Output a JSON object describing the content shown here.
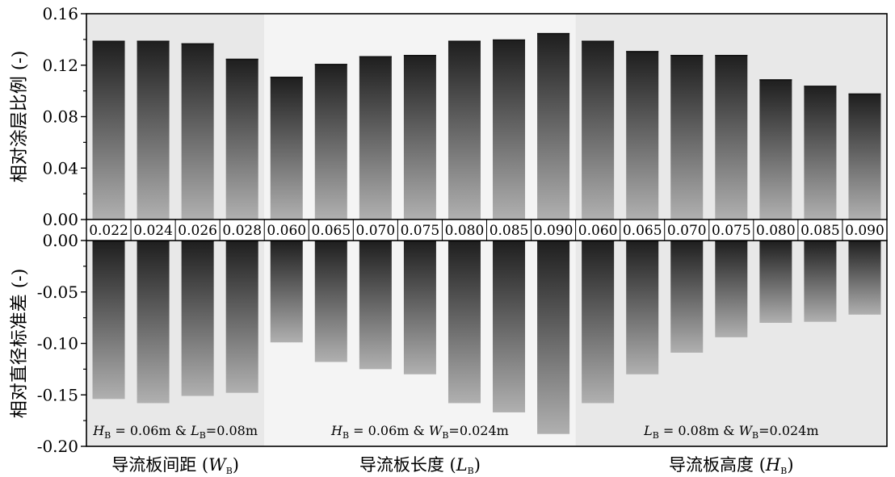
{
  "chart_data": {
    "type": "bar",
    "categories": [
      "0.022",
      "0.024",
      "0.026",
      "0.028",
      "0.060",
      "0.065",
      "0.070",
      "0.075",
      "0.080",
      "0.085",
      "0.090",
      "0.060",
      "0.065",
      "0.070",
      "0.075",
      "0.080",
      "0.085",
      "0.090"
    ],
    "groups": [
      {
        "label": "导流板间距 (",
        "label_var": "W",
        "label_sub": "B",
        "label_end": ")",
        "count": 4,
        "background": "#e8e8e8",
        "condition": [
          {
            "var": "H",
            "sub": "B",
            "text": " = 0.06m & "
          },
          {
            "var": "L",
            "sub": "B",
            "text": "=0.08m"
          }
        ]
      },
      {
        "label": "导流板长度 (",
        "label_var": "L",
        "label_sub": "B",
        "label_end": ")",
        "count": 7,
        "background": "#f4f4f4",
        "condition": [
          {
            "var": "H",
            "sub": "B",
            "text": " = 0.06m & "
          },
          {
            "var": "W",
            "sub": "B",
            "text": "=0.024m"
          }
        ]
      },
      {
        "label": "导流板高度 (",
        "label_var": "H",
        "label_sub": "B",
        "label_end": ")",
        "count": 7,
        "background": "#e8e8e8",
        "condition": [
          {
            "var": "L",
            "sub": "B",
            "text": " = 0.08m & "
          },
          {
            "var": "W",
            "sub": "B",
            "text": "=0.024m"
          }
        ]
      }
    ],
    "panels": [
      {
        "name": "top",
        "ylabel": "相对涂层比例 (-)",
        "ylim": [
          0,
          0.16
        ],
        "yticks": [
          "0.00",
          "0.04",
          "0.08",
          "0.12",
          "0.16"
        ],
        "values": [
          0.139,
          0.139,
          0.137,
          0.125,
          0.111,
          0.121,
          0.127,
          0.128,
          0.139,
          0.14,
          0.145,
          0.139,
          0.131,
          0.128,
          0.128,
          0.109,
          0.104,
          0.098
        ]
      },
      {
        "name": "bottom",
        "ylabel": "相对直径标准差 (-)",
        "ylim": [
          -0.2,
          0
        ],
        "yticks": [
          "0.00",
          "-0.05",
          "-0.10",
          "-0.15",
          "-0.20"
        ],
        "values": [
          -0.154,
          -0.158,
          -0.151,
          -0.148,
          -0.099,
          -0.118,
          -0.125,
          -0.13,
          -0.158,
          -0.167,
          -0.188,
          -0.158,
          -0.13,
          -0.109,
          -0.094,
          -0.08,
          -0.079,
          -0.072
        ]
      }
    ],
    "colors": {
      "bar_dark": "#1e1e1e",
      "bar_light": "#b0b0b0"
    }
  }
}
